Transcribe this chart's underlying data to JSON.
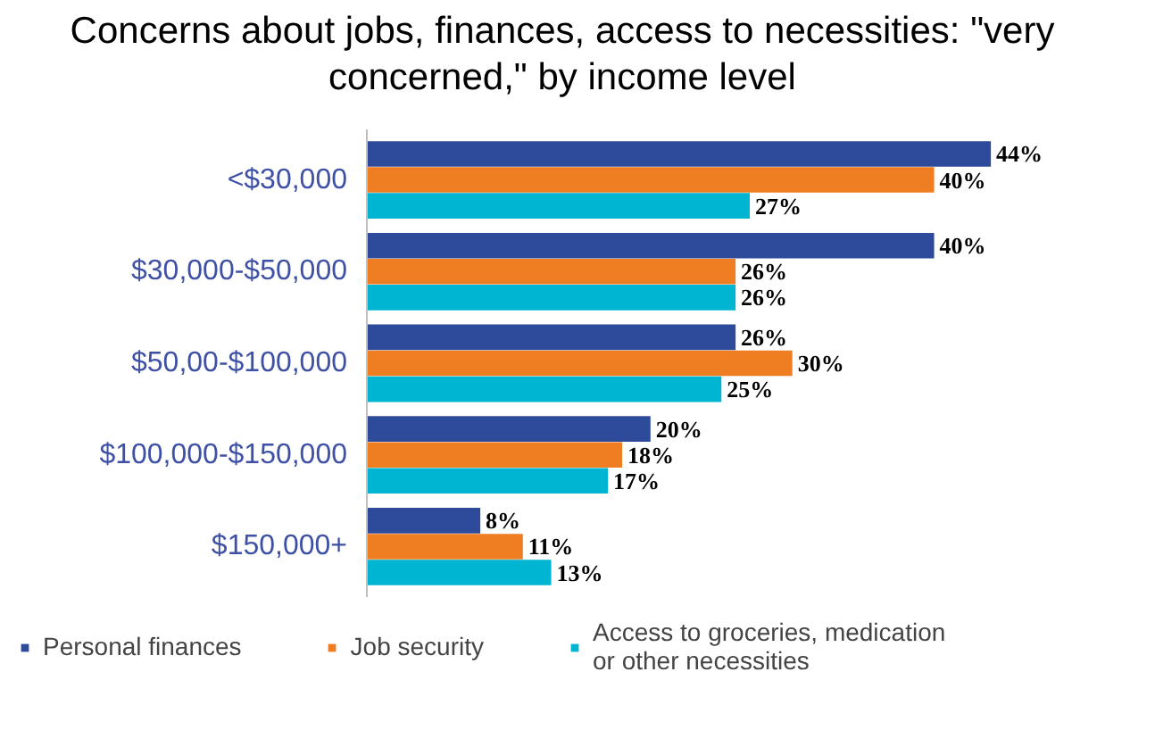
{
  "chart_data": {
    "type": "bar",
    "orientation": "horizontal",
    "title": "Concerns about jobs, finances, access to necessities: \"very concerned,\" by income level",
    "categories": [
      "<$30,000",
      "$30,000-$50,000",
      "$50,00-$100,000",
      "$100,000-$150,000",
      "$150,000+"
    ],
    "series": [
      {
        "name": "Personal finances",
        "color": "#2e4a9b",
        "values": [
          44,
          40,
          26,
          20,
          8
        ],
        "value_labels": [
          "44%",
          "40%",
          "26%",
          "20%",
          "8%"
        ]
      },
      {
        "name": "Job security",
        "color": "#ef7d22",
        "values": [
          40,
          26,
          30,
          18,
          11
        ],
        "value_labels": [
          "40%",
          "26%",
          "30%",
          "18%",
          "11%"
        ]
      },
      {
        "name": "Access to groceries, medication or other necessities",
        "color": "#00b5d1",
        "values": [
          27,
          26,
          25,
          17,
          13
        ],
        "value_labels": [
          "27%",
          "26%",
          "25%",
          "17%",
          "13%"
        ]
      }
    ],
    "legend": "bottom"
  }
}
